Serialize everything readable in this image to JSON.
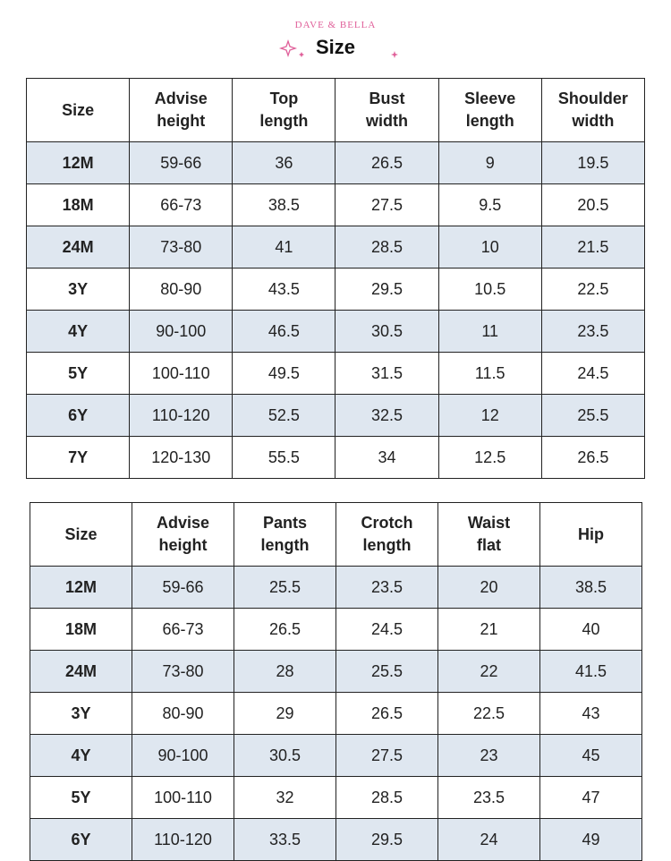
{
  "header": {
    "brand": "DAVE & BELLA",
    "title": "Size"
  },
  "tables": [
    {
      "columns": [
        [
          "Size"
        ],
        [
          "Advise",
          "height"
        ],
        [
          "Top",
          "length"
        ],
        [
          "Bust",
          "width"
        ],
        [
          "Sleeve",
          "length"
        ],
        [
          "Shoulder",
          "width"
        ]
      ],
      "rows": [
        [
          "12M",
          "59-66",
          "36",
          "26.5",
          "9",
          "19.5"
        ],
        [
          "18M",
          "66-73",
          "38.5",
          "27.5",
          "9.5",
          "20.5"
        ],
        [
          "24M",
          "73-80",
          "41",
          "28.5",
          "10",
          "21.5"
        ],
        [
          "3Y",
          "80-90",
          "43.5",
          "29.5",
          "10.5",
          "22.5"
        ],
        [
          "4Y",
          "90-100",
          "46.5",
          "30.5",
          "11",
          "23.5"
        ],
        [
          "5Y",
          "100-110",
          "49.5",
          "31.5",
          "11.5",
          "24.5"
        ],
        [
          "6Y",
          "110-120",
          "52.5",
          "32.5",
          "12",
          "25.5"
        ],
        [
          "7Y",
          "120-130",
          "55.5",
          "34",
          "12.5",
          "26.5"
        ]
      ]
    },
    {
      "columns": [
        [
          "Size"
        ],
        [
          "Advise",
          "height"
        ],
        [
          "Pants",
          "length"
        ],
        [
          "Crotch",
          "length"
        ],
        [
          "Waist",
          "flat"
        ],
        [
          "Hip"
        ]
      ],
      "rows": [
        [
          "12M",
          "59-66",
          "25.5",
          "23.5",
          "20",
          "38.5"
        ],
        [
          "18M",
          "66-73",
          "26.5",
          "24.5",
          "21",
          "40"
        ],
        [
          "24M",
          "73-80",
          "28",
          "25.5",
          "22",
          "41.5"
        ],
        [
          "3Y",
          "80-90",
          "29",
          "26.5",
          "22.5",
          "43"
        ],
        [
          "4Y",
          "90-100",
          "30.5",
          "27.5",
          "23",
          "45"
        ],
        [
          "5Y",
          "100-110",
          "32",
          "28.5",
          "23.5",
          "47"
        ],
        [
          "6Y",
          "110-120",
          "33.5",
          "29.5",
          "24",
          "49"
        ]
      ]
    }
  ]
}
